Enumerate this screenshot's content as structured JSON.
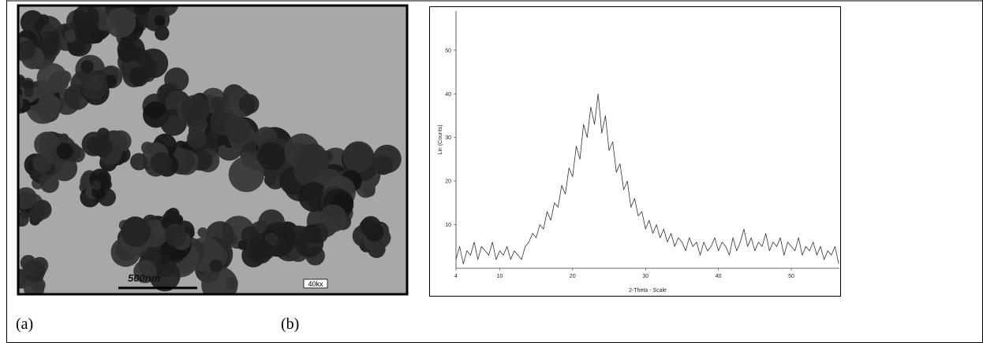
{
  "figure": {
    "panel_a": {
      "scale_bar": "500nm",
      "magnification": "40kx",
      "caption": "(a)"
    },
    "panel_b": {
      "caption": "(b)"
    }
  },
  "chart_data": {
    "type": "line",
    "xlabel": "2-Theta - Scale",
    "ylabel": "Lin (Counts)",
    "color": "#333333",
    "x": [
      4,
      4.5,
      5,
      5.5,
      6,
      6.5,
      7,
      7.5,
      8,
      8.5,
      9,
      9.5,
      10,
      10.5,
      11,
      11.5,
      12,
      12.5,
      13,
      13.5,
      14,
      14.5,
      15,
      15.5,
      16,
      16.5,
      17,
      17.5,
      18,
      18.5,
      19,
      19.5,
      20,
      20.5,
      21,
      21.5,
      22,
      22.5,
      23,
      23.5,
      24,
      24.5,
      25,
      25.5,
      26,
      26.5,
      27,
      27.5,
      28,
      28.5,
      29,
      29.5,
      30,
      30.5,
      31,
      31.5,
      32,
      32.5,
      33,
      33.5,
      34,
      34.5,
      35,
      35.5,
      36,
      36.5,
      37,
      37.5,
      38,
      38.5,
      39,
      39.5,
      40,
      40.5,
      41,
      41.5,
      42,
      42.5,
      43,
      43.5,
      44,
      44.5,
      45,
      45.5,
      46,
      46.5,
      47,
      47.5,
      48,
      48.5,
      49,
      49.5,
      50,
      50.5,
      51,
      51.5,
      52,
      52.5,
      53,
      53.5,
      54,
      54.5,
      55,
      55.5,
      56,
      56.5
    ],
    "values": [
      2,
      5,
      1,
      4,
      3,
      6,
      2,
      5,
      4,
      3,
      6,
      2,
      4,
      3,
      5,
      2,
      4,
      3,
      2,
      5,
      6,
      8,
      7,
      10,
      9,
      13,
      11,
      15,
      14,
      19,
      17,
      23,
      21,
      28,
      25,
      33,
      30,
      37,
      33,
      40,
      31,
      35,
      27,
      29,
      22,
      24,
      18,
      20,
      14,
      16,
      12,
      13,
      9,
      11,
      8,
      10,
      7,
      9,
      6,
      8,
      5,
      7,
      6,
      4,
      7,
      5,
      6,
      3,
      6,
      4,
      5,
      7,
      4,
      6,
      5,
      3,
      7,
      4,
      6,
      9,
      5,
      7,
      4,
      6,
      5,
      8,
      4,
      6,
      5,
      7,
      3,
      6,
      5,
      4,
      7,
      3,
      5,
      4,
      6,
      3,
      5,
      2,
      4,
      3,
      5,
      1
    ],
    "xlim": [
      4,
      56.6
    ],
    "ylim": [
      0,
      59
    ],
    "xticks": [
      4,
      10,
      20,
      30,
      40,
      50
    ],
    "yticks": [
      10,
      20,
      30,
      40,
      50
    ]
  }
}
